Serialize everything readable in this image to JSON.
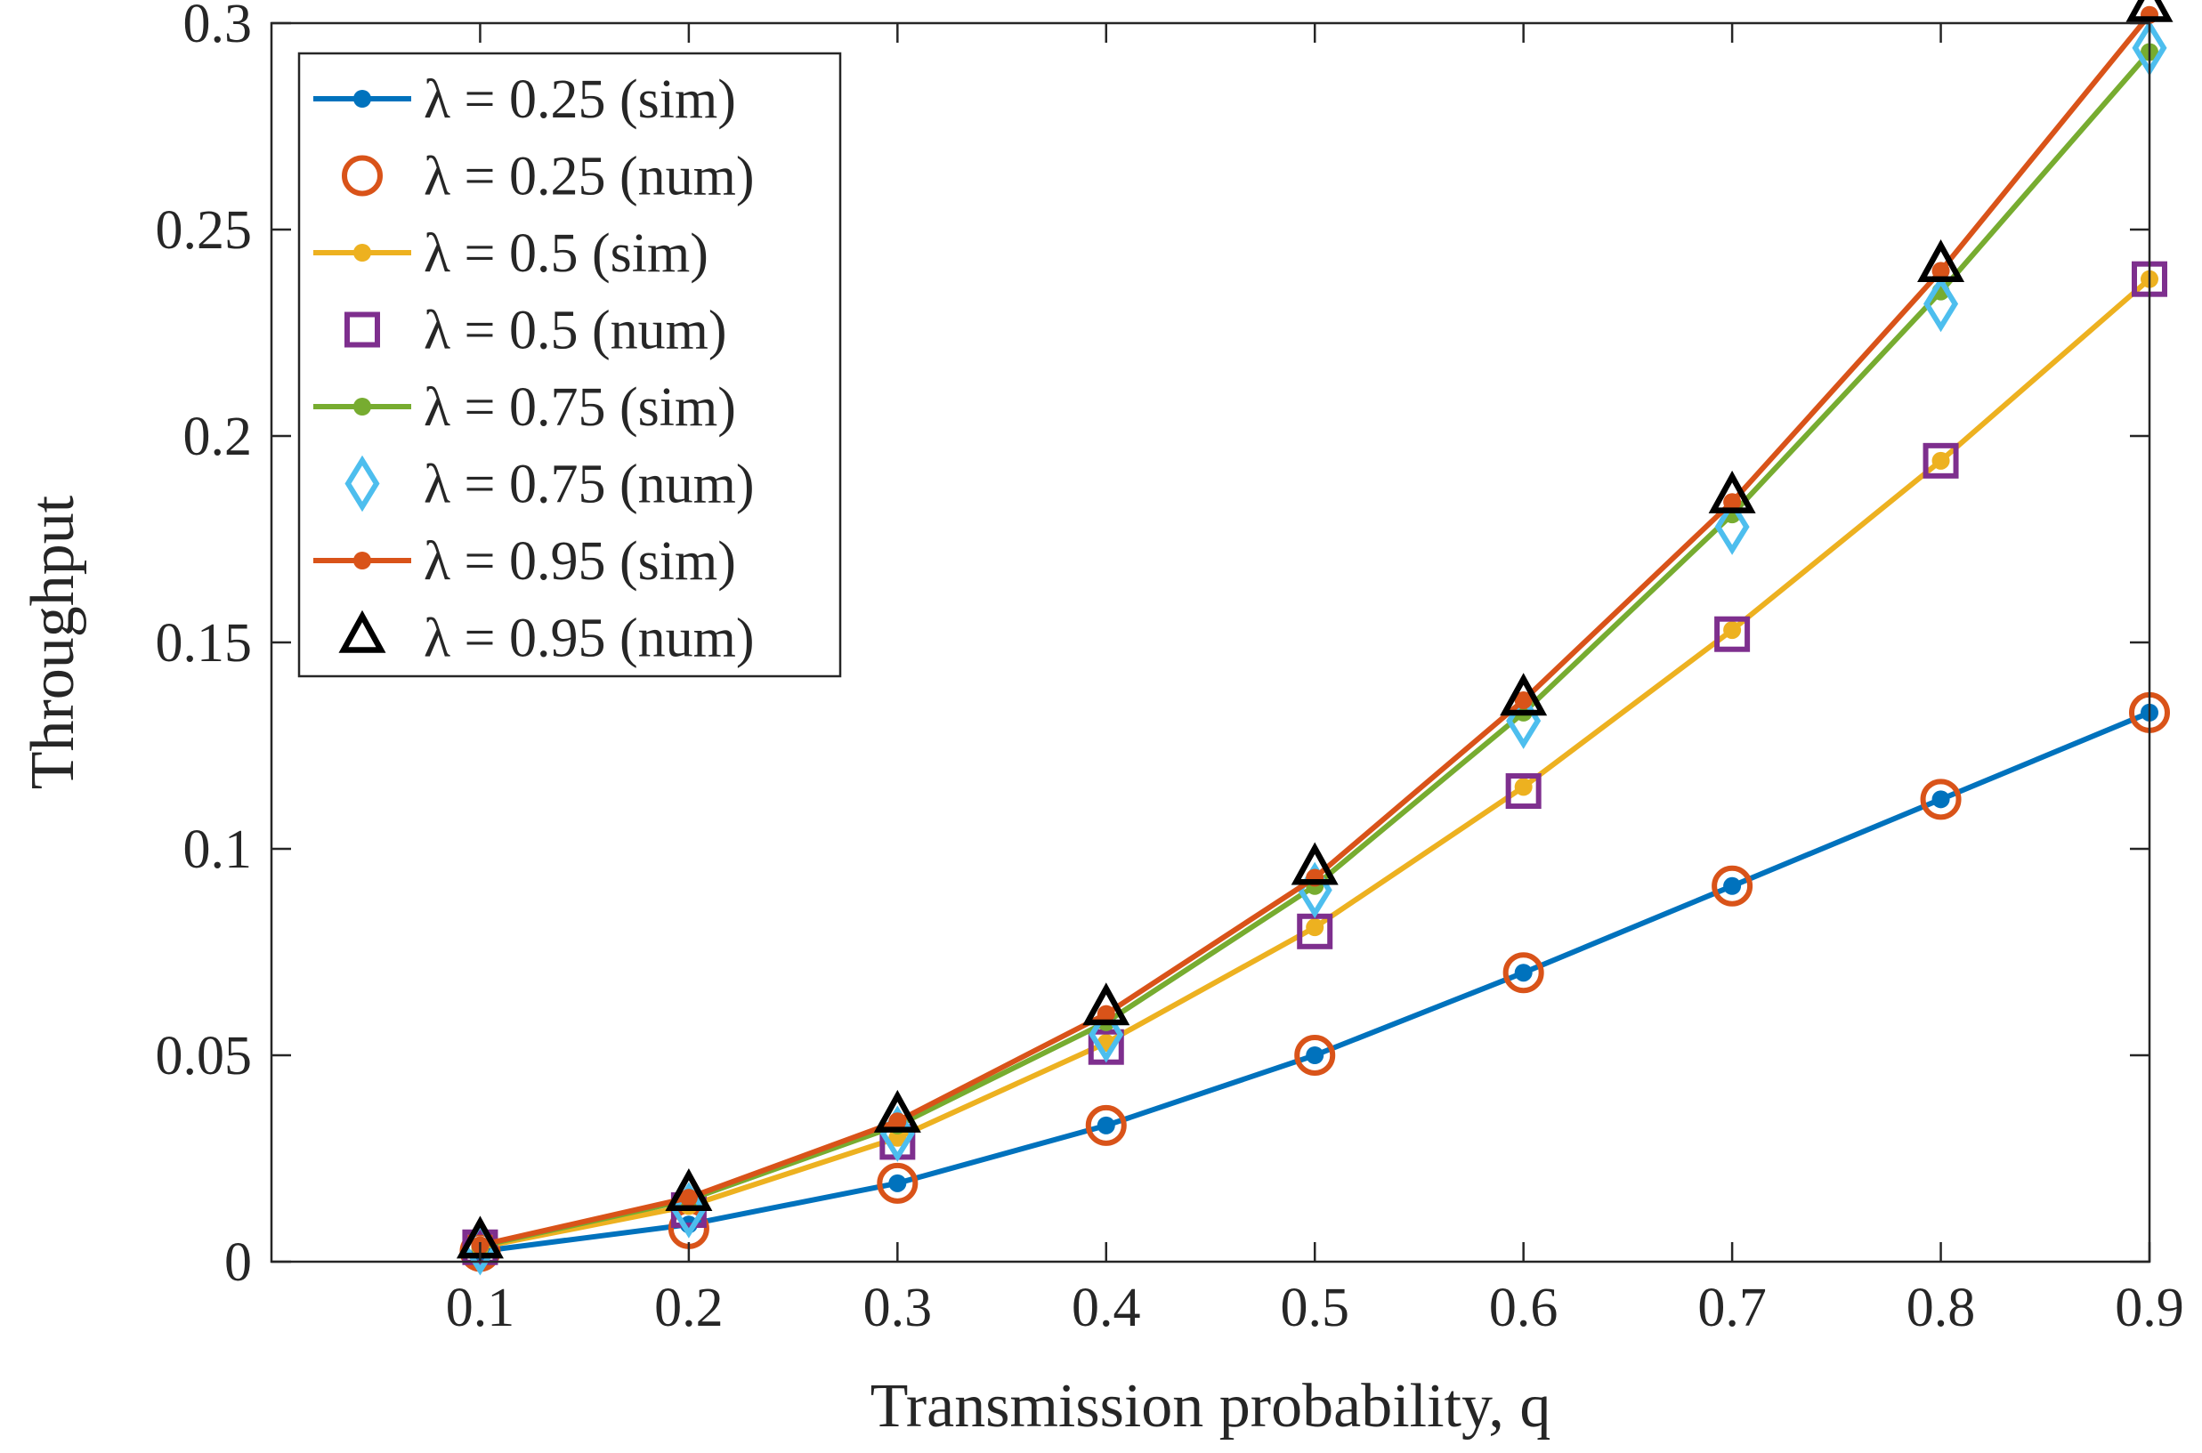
{
  "chart_data": {
    "type": "line",
    "title": "",
    "xlabel": "Transmission probability, q",
    "ylabel": "Throughput",
    "xlim": [
      0.0,
      0.9
    ],
    "ylim": [
      0,
      0.3
    ],
    "x": [
      0.1,
      0.2,
      0.3,
      0.4,
      0.5,
      0.6,
      0.7,
      0.8,
      0.9
    ],
    "xticks": [
      0.1,
      0.2,
      0.3,
      0.4,
      0.5,
      0.6,
      0.7,
      0.8,
      0.9
    ],
    "xtick_labels": [
      "0.1",
      "0.2",
      "0.3",
      "0.4",
      "0.5",
      "0.6",
      "0.7",
      "0.8",
      "0.9"
    ],
    "yticks": [
      0,
      0.05,
      0.1,
      0.15,
      0.2,
      0.25,
      0.3
    ],
    "ytick_labels": [
      "0",
      "0.05",
      "0.1",
      "0.15",
      "0.2",
      "0.25",
      "0.3"
    ],
    "grid": false,
    "legend_position": "top-left",
    "series": [
      {
        "name": "λ = 0.25 (sim)",
        "style": "line-dot",
        "color": "#0072BD",
        "values": [
          0.0025,
          0.009,
          0.019,
          0.033,
          0.05,
          0.07,
          0.091,
          0.112,
          0.133
        ]
      },
      {
        "name": "λ = 0.25 (num)",
        "style": "circle",
        "color": "#D95319",
        "values": [
          0.0025,
          0.008,
          0.019,
          0.033,
          0.05,
          0.07,
          0.091,
          0.112,
          0.133
        ]
      },
      {
        "name": "λ = 0.5 (sim)",
        "style": "line-dot",
        "color": "#EDB120",
        "values": [
          0.0035,
          0.0135,
          0.03,
          0.053,
          0.081,
          0.115,
          0.153,
          0.194,
          0.238
        ]
      },
      {
        "name": "λ = 0.5 (num)",
        "style": "square",
        "color": "#7E2F8E",
        "values": [
          0.0035,
          0.0125,
          0.029,
          0.052,
          0.08,
          0.114,
          0.152,
          0.194,
          0.238
        ]
      },
      {
        "name": "λ = 0.75 (sim)",
        "style": "line-dot",
        "color": "#77AC30",
        "values": [
          0.0038,
          0.015,
          0.033,
          0.058,
          0.091,
          0.133,
          0.181,
          0.235,
          0.293
        ]
      },
      {
        "name": "λ = 0.75 (num)",
        "style": "diamond",
        "color": "#4DBEEE",
        "values": [
          0.0035,
          0.0125,
          0.031,
          0.055,
          0.09,
          0.131,
          0.178,
          0.232,
          0.294
        ]
      },
      {
        "name": "λ = 0.95 (sim)",
        "style": "line-dot",
        "color": "#D95319",
        "values": [
          0.004,
          0.0155,
          0.034,
          0.06,
          0.093,
          0.136,
          0.184,
          0.24,
          0.302
        ]
      },
      {
        "name": "λ = 0.95 (num)",
        "style": "triangle",
        "color": "#000000",
        "values": [
          0.0045,
          0.016,
          0.035,
          0.061,
          0.095,
          0.136,
          0.185,
          0.241,
          0.304
        ]
      }
    ]
  }
}
